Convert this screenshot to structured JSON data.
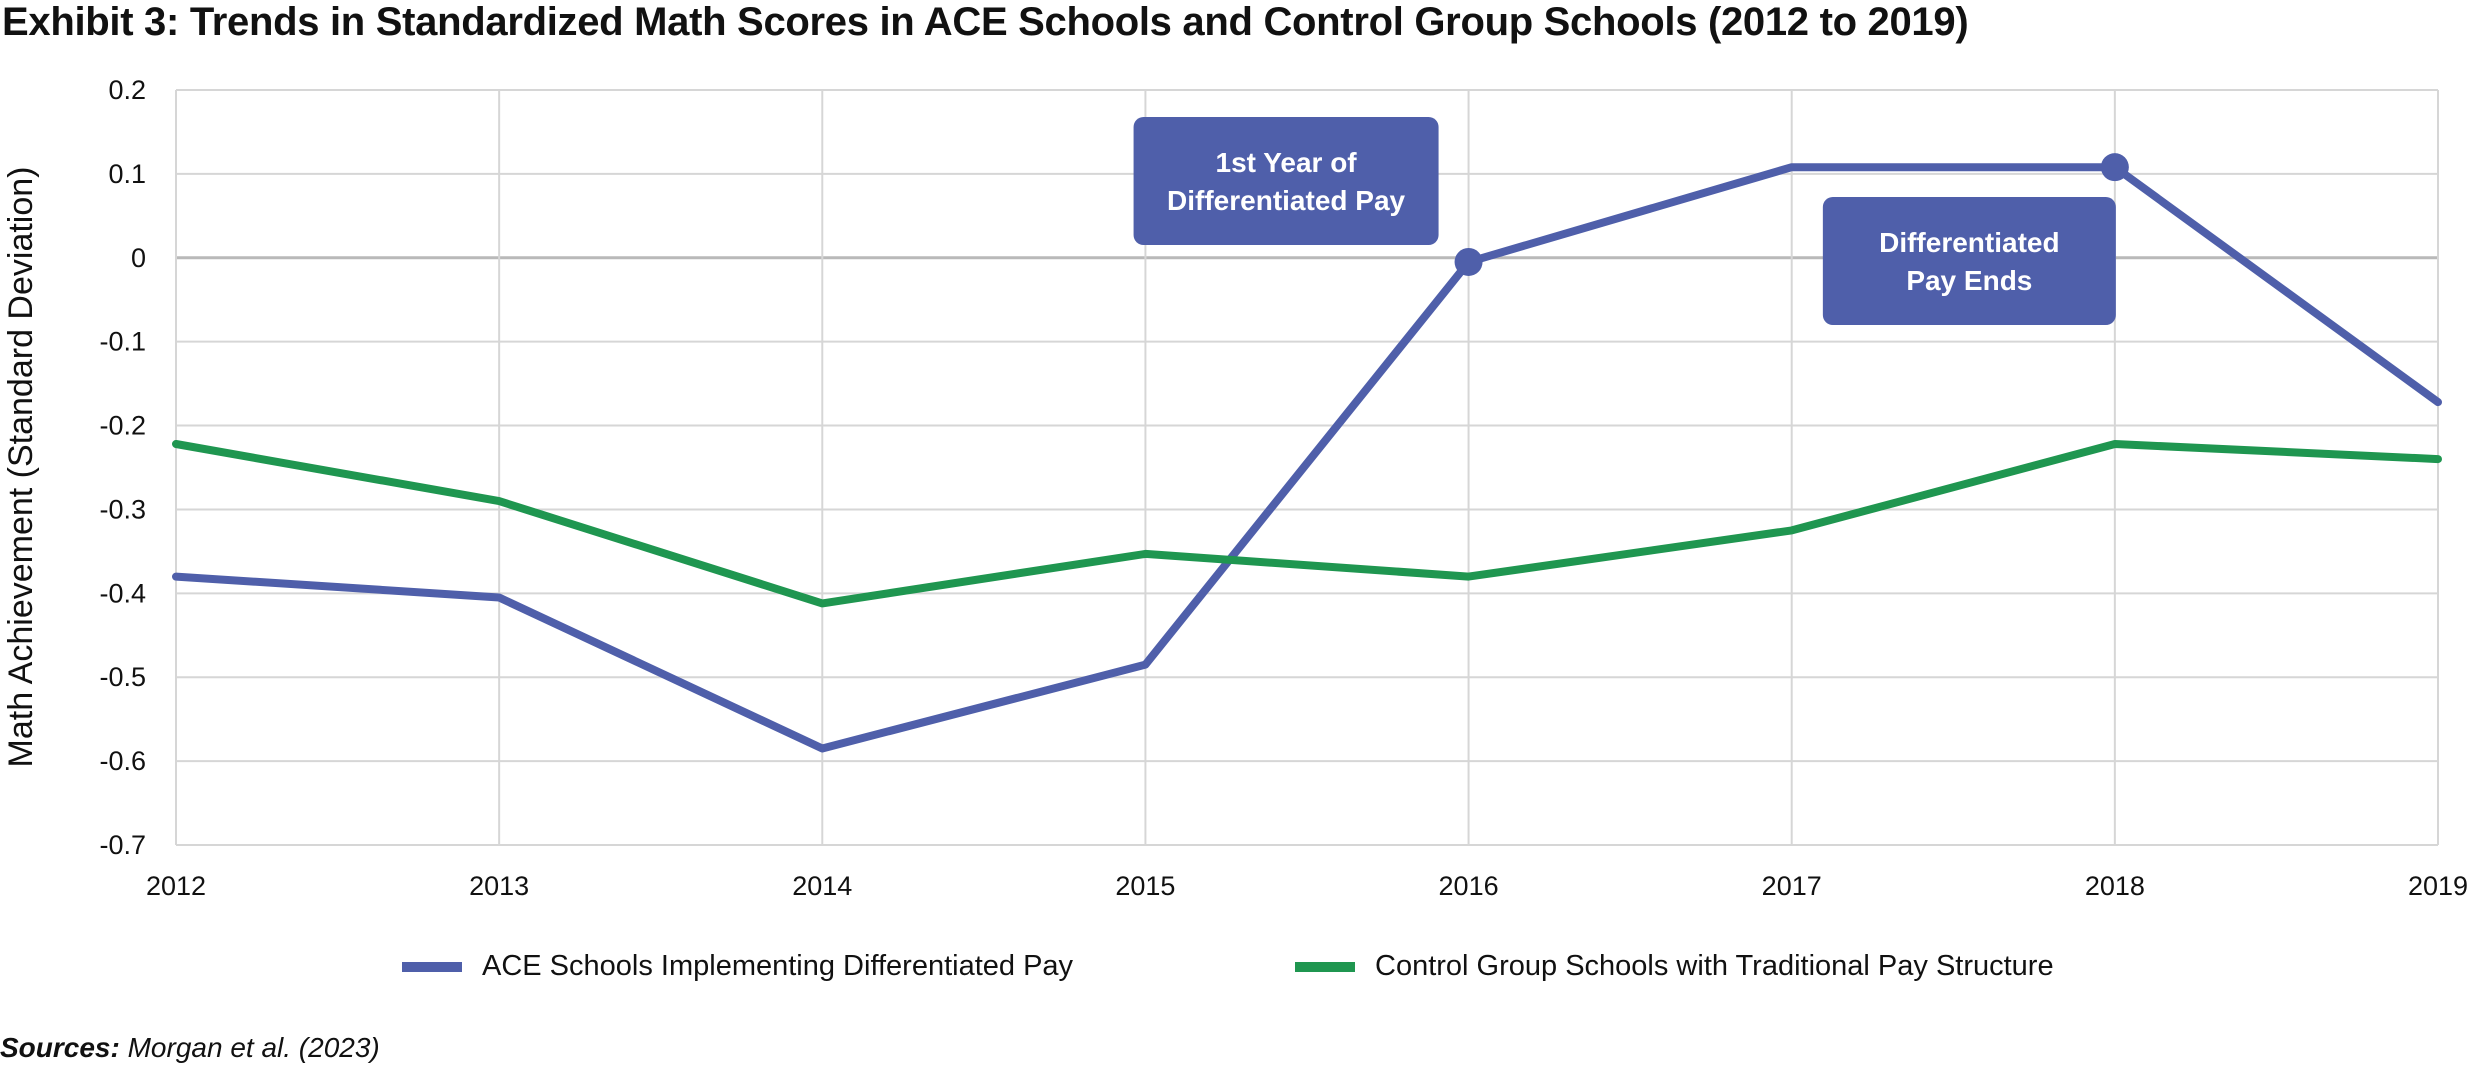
{
  "chart_data": {
    "type": "line",
    "title": "Exhibit 3: Trends in Standardized Math Scores in ACE Schools and Control Group Schools (2012 to 2019)",
    "ylabel": "Math Achievement (Standard Deviation)",
    "xlabel": "",
    "x": [
      "2012",
      "2013",
      "2014",
      "2015",
      "2016",
      "2017",
      "2018",
      "2019"
    ],
    "ylim": [
      -0.7,
      0.2
    ],
    "yticks": [
      0.2,
      0.1,
      0,
      -0.1,
      -0.2,
      -0.3,
      -0.4,
      -0.5,
      -0.6,
      -0.7
    ],
    "ytick_labels": [
      "0.2",
      "0.1",
      "0",
      "-0.1",
      "-0.2",
      "-0.3",
      "-0.4",
      "-0.5",
      "-0.6",
      "-0.7"
    ],
    "grid": true,
    "legend_position": "bottom",
    "series": [
      {
        "name": "ACE Schools Implementing Differentiated Pay",
        "color": "#4f5faa",
        "values": [
          -0.38,
          -0.405,
          -0.585,
          -0.485,
          -0.005,
          0.108,
          0.108,
          -0.172
        ]
      },
      {
        "name": "Control Group Schools with Traditional Pay Structure",
        "color": "#1f9650",
        "values": [
          -0.222,
          -0.29,
          -0.412,
          -0.353,
          -0.38,
          -0.325,
          -0.222,
          -0.24
        ]
      }
    ],
    "markers": [
      {
        "series": 0,
        "x": "2016",
        "y": -0.005
      },
      {
        "series": 0,
        "x": "2018",
        "y": 0.108
      }
    ],
    "annotations": [
      {
        "lines": [
          "1st Year of",
          "Differentiated Pay"
        ],
        "near_x": "2016",
        "color": "#4f5faa"
      },
      {
        "lines": [
          "Differentiated",
          "Pay Ends"
        ],
        "near_x": "2018",
        "color": "#4f5faa"
      }
    ],
    "sources_label": "Sources:",
    "sources_text": "Morgan et al. (2023)"
  }
}
